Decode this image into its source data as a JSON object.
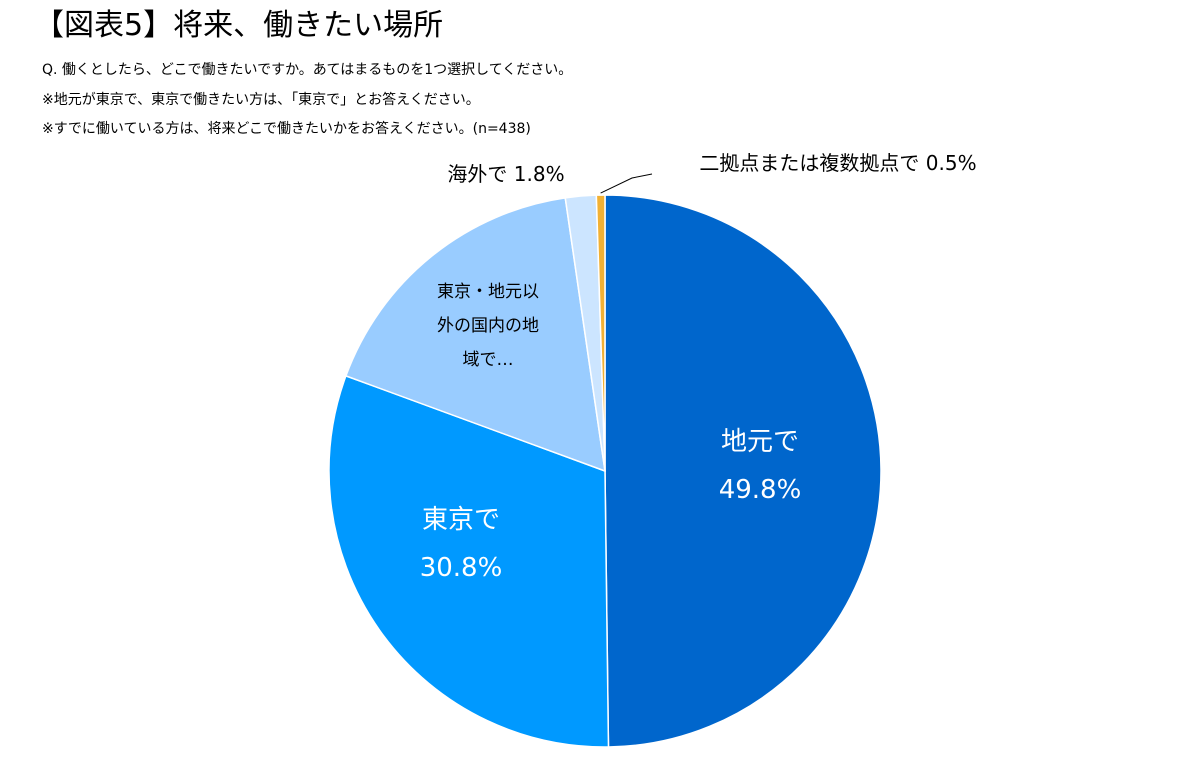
{
  "header": {
    "title": "【図表5】将来、働きたい場所",
    "subtitles": [
      "Q. 働くとしたら、どこで働きたいですか。あてはまるものを1つ選択してください。",
      "※地元が東京で、東京で働きたい方は、「東京で」とお答えください。",
      "※すでに働いている方は、将来どこで働きたいかをお答えください。(n=438)"
    ]
  },
  "chart_data": {
    "type": "pie",
    "start_angle_deg": 0,
    "direction": "clockwise",
    "slices": [
      {
        "label": "地元で",
        "value": 49.8,
        "value_label": "49.8%",
        "color": "#0066CC",
        "label_lines": [
          "地元で",
          "49.8%"
        ],
        "label_color": "#FFFFFF",
        "label_size": 26
      },
      {
        "label": "東京で",
        "value": 30.8,
        "value_label": "30.8%",
        "color": "#0099FF",
        "label_lines": [
          "東京で",
          "30.8%"
        ],
        "label_color": "#FFFFFF",
        "label_size": 26
      },
      {
        "label": "東京・地元以外の国内の地域で",
        "value": 17.1,
        "value_label": "",
        "color": "#99CCFF",
        "label_lines": [
          "東京・地元以",
          "外の国内の地",
          "域で…"
        ],
        "label_color": "#000000",
        "label_size": 17
      },
      {
        "label": "海外で",
        "value": 1.8,
        "value_label": "1.8%",
        "color": "#CCE5FF",
        "label_lines": [
          "海外で 1.8%"
        ],
        "label_color": "#000000",
        "label_size": 20
      },
      {
        "label": "二拠点または複数拠点で",
        "value": 0.5,
        "value_label": "0.5%",
        "color": "#F2B134",
        "label_lines": [
          "二拠点または複数拠点で 0.5%"
        ],
        "label_color": "#000000",
        "label_size": 20
      }
    ]
  }
}
